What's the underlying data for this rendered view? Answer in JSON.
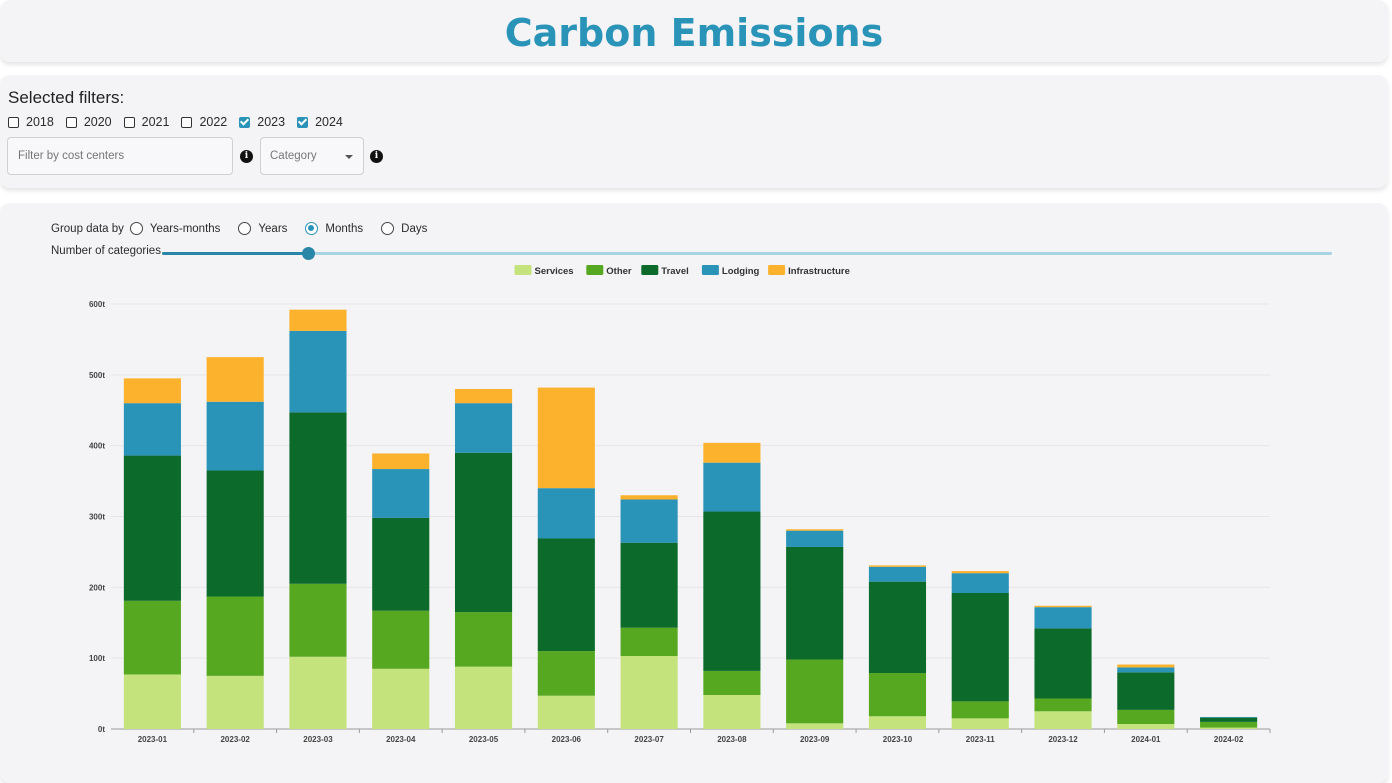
{
  "page": {
    "title": "Carbon Emissions"
  },
  "filters": {
    "title": "Selected filters:",
    "years": [
      {
        "label": "2018",
        "checked": false
      },
      {
        "label": "2020",
        "checked": false
      },
      {
        "label": "2021",
        "checked": false
      },
      {
        "label": "2022",
        "checked": false
      },
      {
        "label": "2023",
        "checked": true
      },
      {
        "label": "2024",
        "checked": true
      }
    ],
    "cost_centers_placeholder": "Filter by cost centers",
    "category_placeholder": "Category",
    "info_glyph": "i"
  },
  "controls": {
    "group_by_label": "Group data by",
    "group_options": [
      {
        "label": "Years-months",
        "selected": false
      },
      {
        "label": "Years",
        "selected": false
      },
      {
        "label": "Months",
        "selected": true
      },
      {
        "label": "Days",
        "selected": false
      }
    ],
    "categories_label": "Number of categories",
    "categories_value_fraction": 0.125
  },
  "chart_data": {
    "type": "bar",
    "stacked": true,
    "legend_position": "top-center",
    "grid": true,
    "ylim": [
      0,
      600
    ],
    "yticks": [
      "0t",
      "100t",
      "200t",
      "300t",
      "400t",
      "500t",
      "600t"
    ],
    "categories": [
      "2023-01",
      "2023-02",
      "2023-03",
      "2023-04",
      "2023-05",
      "2023-06",
      "2023-07",
      "2023-08",
      "2023-09",
      "2023-10",
      "2023-11",
      "2023-12",
      "2024-01",
      "2024-02"
    ],
    "series": [
      {
        "name": "Services",
        "color": "#c5e37c",
        "values": [
          77,
          75,
          102,
          85,
          88,
          47,
          103,
          48,
          8,
          18,
          15,
          25,
          7,
          2
        ]
      },
      {
        "name": "Other",
        "color": "#56a820",
        "values": [
          104,
          112,
          103,
          82,
          77,
          63,
          40,
          34,
          90,
          61,
          24,
          18,
          20,
          8
        ]
      },
      {
        "name": "Travel",
        "color": "#0c6a2a",
        "values": [
          205,
          178,
          242,
          131,
          225,
          159,
          120,
          225,
          159,
          129,
          153,
          99,
          53,
          6
        ]
      },
      {
        "name": "Lodging",
        "color": "#2a93b8",
        "values": [
          74,
          97,
          115,
          69,
          70,
          71,
          61,
          69,
          23,
          21,
          28,
          30,
          7,
          1
        ]
      },
      {
        "name": "Infrastructure",
        "color": "#fcb22c",
        "values": [
          35,
          63,
          30,
          22,
          20,
          142,
          6,
          28,
          2,
          2,
          3,
          2,
          4,
          0
        ]
      }
    ]
  }
}
